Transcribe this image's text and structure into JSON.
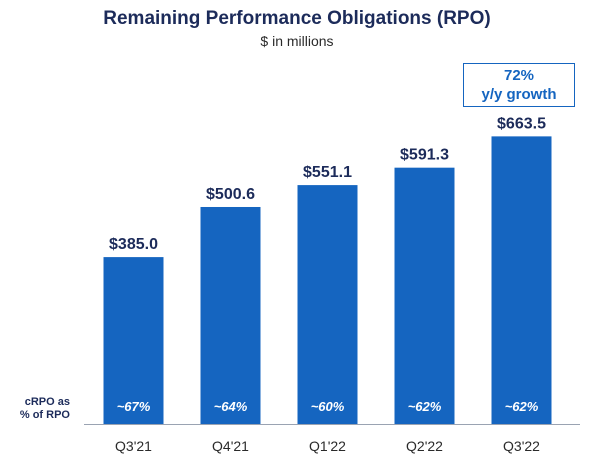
{
  "title": "Remaining Performance Obligations (RPO)",
  "subtitle": "$ in millions",
  "callout": {
    "line1": "72%",
    "line2": "y/y growth"
  },
  "side_label": {
    "line1": "cRPO as",
    "line2": "% of RPO"
  },
  "colors": {
    "bar": "#1565c0",
    "title": "#1c2b5a",
    "axis": "#9aa3b2"
  },
  "chart_data": {
    "type": "bar",
    "title": "Remaining Performance Obligations (RPO)",
    "subtitle": "$ in millions",
    "categories": [
      "Q3'21",
      "Q4'21",
      "Q1'22",
      "Q2'22",
      "Q3'22"
    ],
    "values": [
      385.0,
      500.6,
      551.1,
      591.3,
      663.5
    ],
    "value_labels": [
      "$385.0",
      "$500.6",
      "$551.1",
      "$591.3",
      "$663.5"
    ],
    "crpo_labels": [
      "~67%",
      "~64%",
      "~60%",
      "~62%",
      "~62%"
    ],
    "xlabel": "",
    "ylabel": "",
    "grid": false,
    "legend": "none"
  }
}
